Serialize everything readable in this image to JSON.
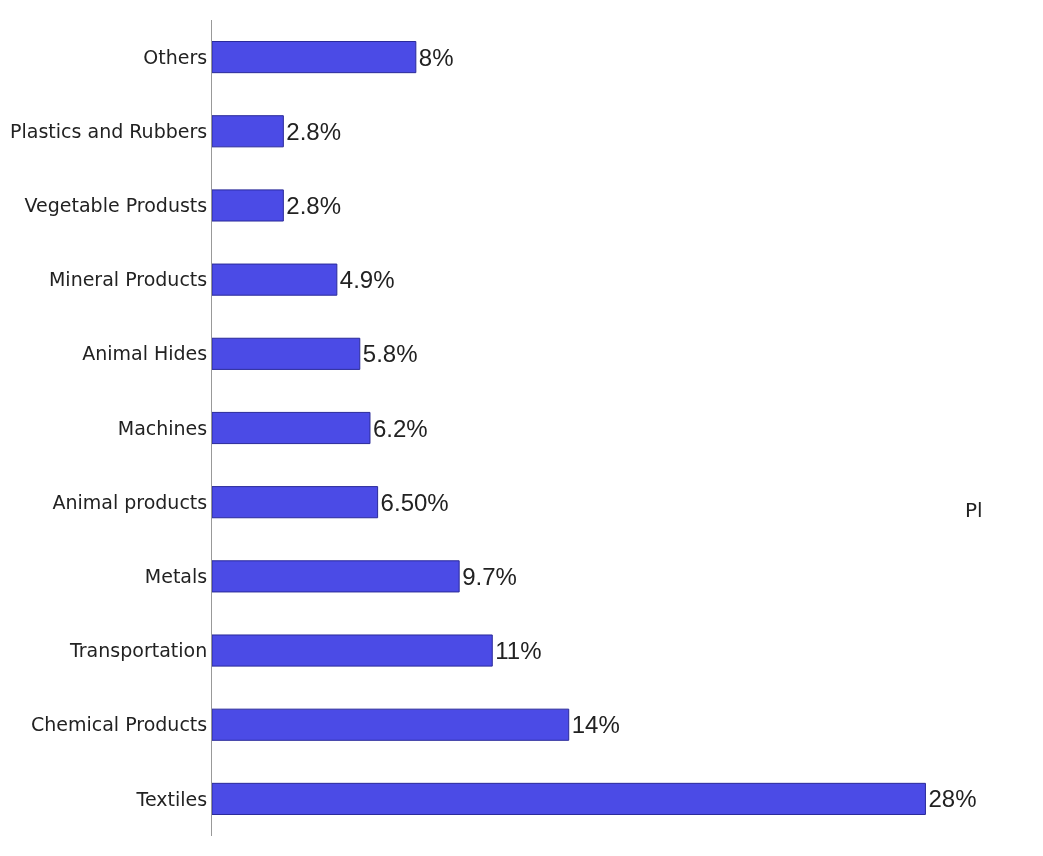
{
  "chart_data": {
    "type": "bar",
    "orientation": "horizontal",
    "categories": [
      "Others",
      "Plastics and Rubbers",
      "Vegetable Produsts",
      "Mineral Products",
      "Animal Hides",
      "Machines",
      "Animal products",
      "Metals",
      "Transportation",
      "Chemical Products",
      "Textiles"
    ],
    "values": [
      8,
      2.8,
      2.8,
      4.9,
      5.8,
      6.2,
      6.5,
      9.7,
      11,
      14,
      28
    ],
    "value_labels": [
      "8%",
      "2.8%",
      "2.8%",
      "4.9%",
      "5.8%",
      "6.2%",
      "6.50%",
      "9.7%",
      "11%",
      "14%",
      "28%"
    ],
    "color": "#4b4be6",
    "annotations": [
      "Pl"
    ]
  }
}
